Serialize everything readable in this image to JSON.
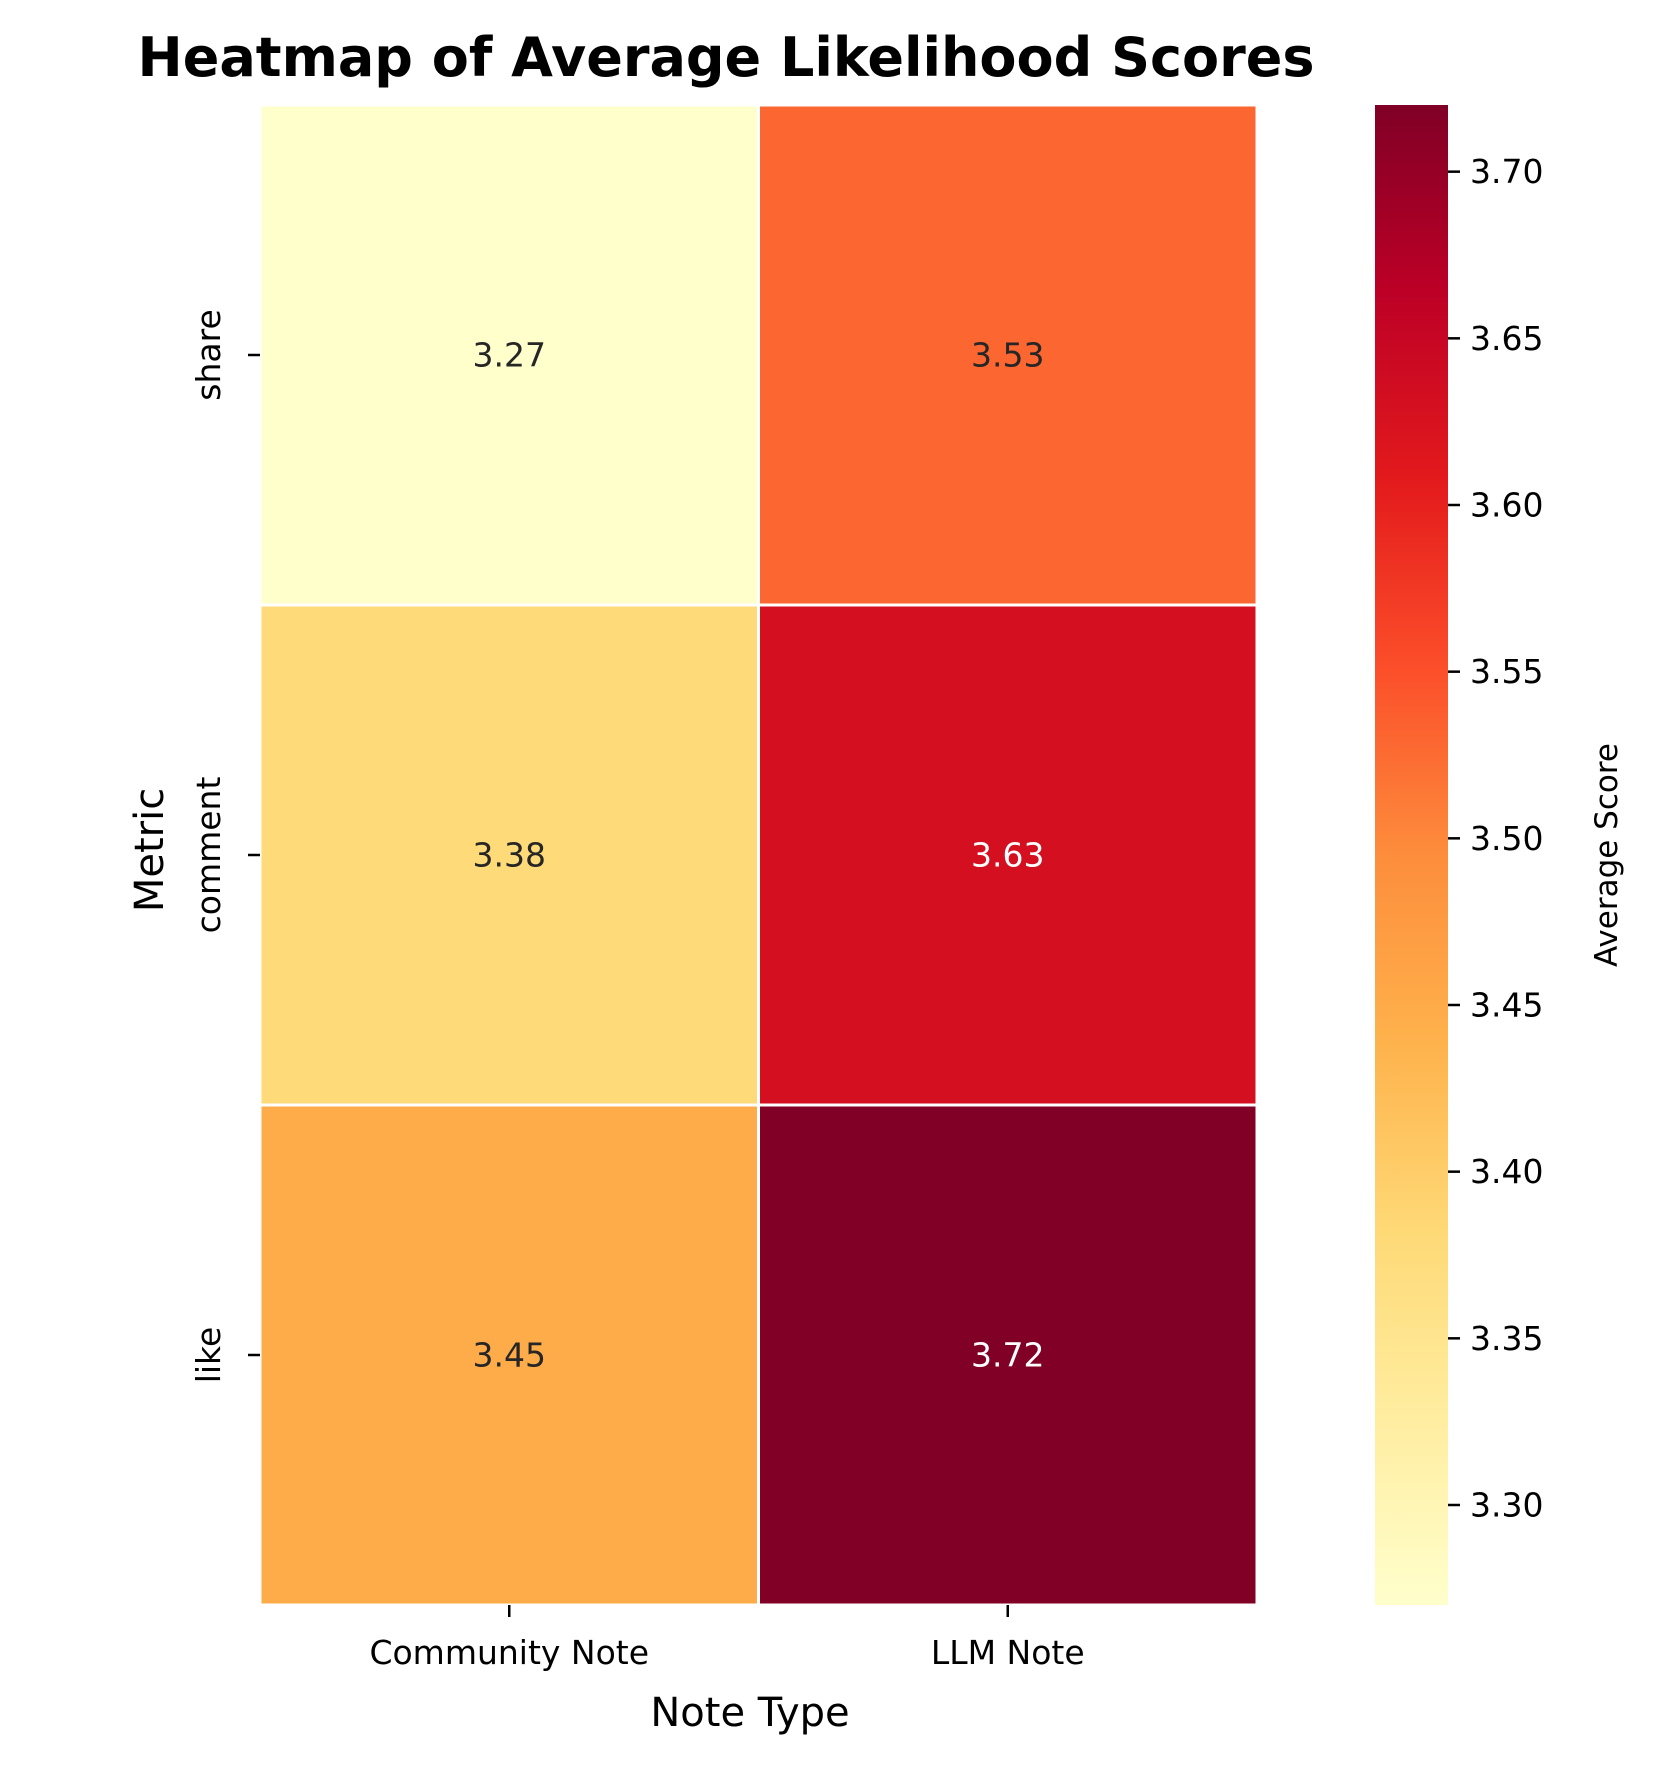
{
  "chart_data": {
    "type": "heatmap",
    "title": "Heatmap of Average Likelihood Scores",
    "xlabel": "Note Type",
    "ylabel": "Metric",
    "columns": [
      "Community Note",
      "LLM Note"
    ],
    "rows": [
      "share",
      "comment",
      "like"
    ],
    "values": [
      [
        3.27,
        3.53
      ],
      [
        3.38,
        3.63
      ],
      [
        3.45,
        3.72
      ]
    ],
    "value_labels": [
      [
        "3.27",
        "3.53"
      ],
      [
        "3.38",
        "3.63"
      ],
      [
        "3.45",
        "3.72"
      ]
    ],
    "colormap": "YlOrRd",
    "color_range": [
      3.27,
      3.72
    ],
    "colorbar": {
      "label": "Average Score",
      "ticks": [
        3.3,
        3.35,
        3.4,
        3.45,
        3.5,
        3.55,
        3.6,
        3.65,
        3.7
      ],
      "tick_labels": [
        "3.30",
        "3.35",
        "3.40",
        "3.45",
        "3.50",
        "3.55",
        "3.60",
        "3.65",
        "3.70"
      ]
    },
    "colormap_stops": [
      "#ffffcc",
      "#ffeda0",
      "#fed976",
      "#feb24c",
      "#fd8d3c",
      "#fc4e2a",
      "#e31a1c",
      "#bd0026",
      "#800026"
    ],
    "cell_border_color": "#ffffff",
    "annotation_colors": {
      "light_cell": "#262626",
      "dark_cell": "#ffffff"
    }
  }
}
